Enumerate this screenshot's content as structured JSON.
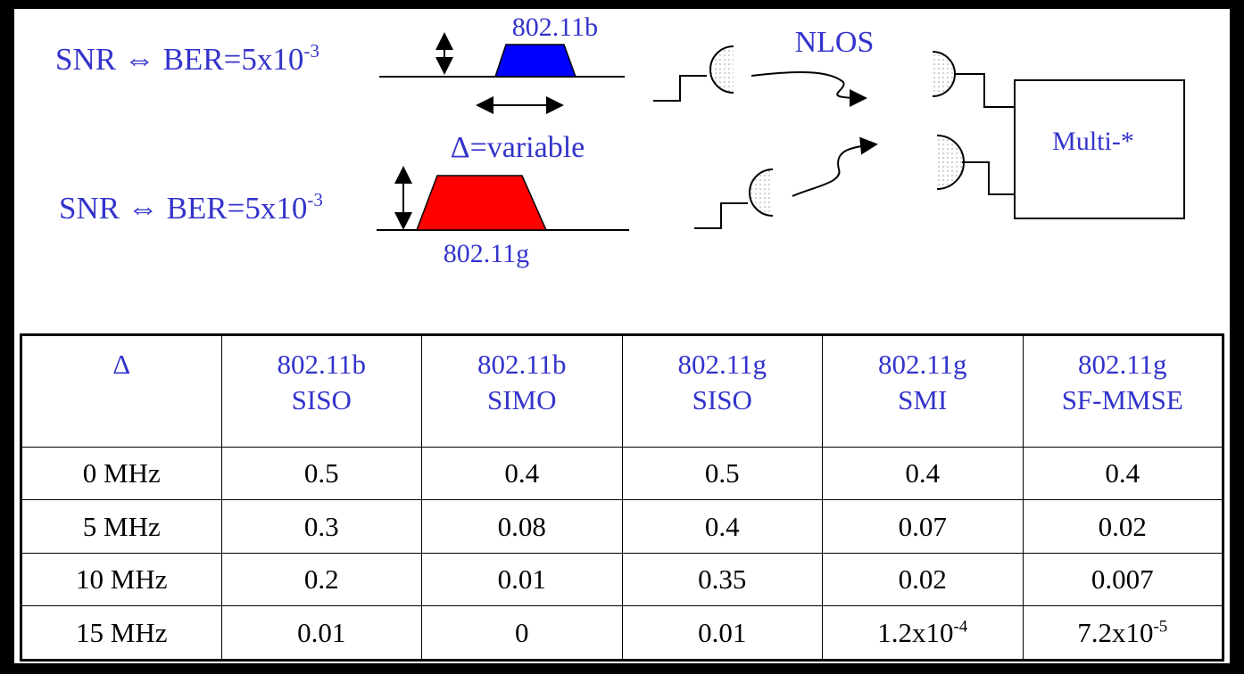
{
  "diagram": {
    "top_label": {
      "base": "SNR ⇔ BER=5x10",
      "exponent": "-3"
    },
    "bottom_label": {
      "base": "SNR ⇔ BER=5x10",
      "exponent": "-3"
    },
    "band_top": "802.11b",
    "band_bottom": "802.11g",
    "delta_label": "Δ=variable",
    "channel_label": "NLOS",
    "receiver_label": "Multi-*"
  },
  "table": {
    "header": [
      [
        "Δ"
      ],
      [
        "802.11b",
        "SISO"
      ],
      [
        "802.11b",
        "SIMO"
      ],
      [
        "802.11g",
        "SISO"
      ],
      [
        "802.11g",
        "SMI"
      ],
      [
        "802.11g",
        "SF-MMSE"
      ]
    ],
    "rows": [
      [
        "0 MHz",
        "0.5",
        "0.4",
        "0.5",
        "0.4",
        "0.4"
      ],
      [
        "5 MHz",
        "0.3",
        "0.08",
        "0.4",
        "0.07",
        "0.02"
      ],
      [
        "10 MHz",
        "0.2",
        "0.01",
        "0.35",
        "0.02",
        "0.007"
      ],
      [
        "15 MHz",
        "0.01",
        "0",
        "0.01",
        {
          "base": "1.2x10",
          "exponent": "-4"
        },
        {
          "base": "7.2x10",
          "exponent": "-5"
        }
      ]
    ]
  }
}
